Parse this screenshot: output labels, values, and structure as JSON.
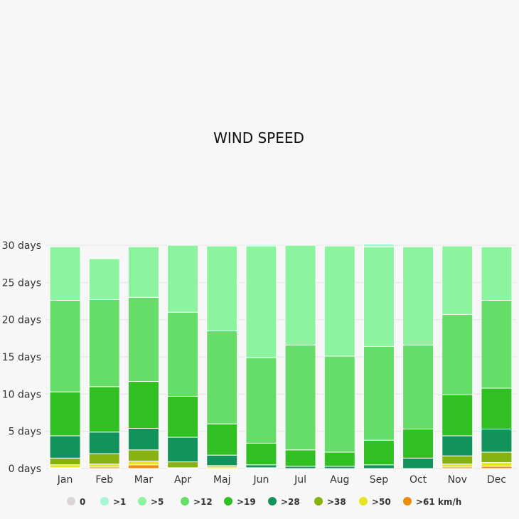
{
  "chart_data": {
    "type": "bar",
    "stacked": true,
    "title": "WIND SPEED",
    "ylim": [
      0,
      30
    ],
    "yticks": [
      "0 days",
      "5 days",
      "10 days",
      "15 days",
      "20 days",
      "25 days",
      "30 days"
    ],
    "categories": [
      "Jan",
      "Feb",
      "Mar",
      "Apr",
      "Maj",
      "Jun",
      "Jul",
      "Aug",
      "Sep",
      "Oct",
      "Nov",
      "Dec"
    ],
    "legend_position": "bottom",
    "grid": true,
    "series": [
      {
        "name": "0",
        "color": "#dcd5d8",
        "values": [
          0,
          0,
          0,
          0,
          0,
          0,
          0,
          0,
          0,
          0,
          0,
          0
        ]
      },
      {
        "name": ">1",
        "color": "#a8f5d6",
        "values": [
          0,
          0,
          0,
          0,
          0,
          0.2,
          0,
          0,
          0.4,
          0,
          0,
          0
        ]
      },
      {
        "name": ">5",
        "color": "#8cf49e",
        "values": [
          7.2,
          5.5,
          6.8,
          9.0,
          11.4,
          15.0,
          13.4,
          14.8,
          13.4,
          13.2,
          9.2,
          7.2
        ]
      },
      {
        "name": ">12",
        "color": "#65dd68",
        "values": [
          12.3,
          11.7,
          11.3,
          11.3,
          12.5,
          11.5,
          14.1,
          12.9,
          12.6,
          11.3,
          10.8,
          11.8
        ]
      },
      {
        "name": ">19",
        "color": "#31c021",
        "values": [
          5.9,
          6.1,
          6.3,
          5.5,
          4.2,
          2.9,
          2.2,
          1.9,
          3.3,
          3.9,
          5.5,
          5.5
        ]
      },
      {
        "name": ">28",
        "color": "#12935c",
        "values": [
          3.0,
          2.9,
          2.9,
          3.3,
          1.4,
          0.4,
          0.3,
          0.3,
          0.5,
          1.4,
          2.7,
          3.1
        ]
      },
      {
        "name": ">38",
        "color": "#86b30f",
        "values": [
          0.9,
          1.4,
          1.5,
          0.8,
          0.2,
          0.1,
          0,
          0,
          0,
          0,
          1.1,
          1.4
        ]
      },
      {
        "name": ">50",
        "color": "#e5e522",
        "values": [
          0.4,
          0.4,
          0.5,
          0.1,
          0.2,
          0,
          0,
          0,
          0,
          0,
          0.4,
          0.5
        ]
      },
      {
        "name": ">61 km/h",
        "color": "#ee8c10",
        "values": [
          0.1,
          0.2,
          0.5,
          0,
          0,
          0,
          0,
          0,
          0,
          0,
          0.2,
          0.3
        ]
      }
    ]
  }
}
